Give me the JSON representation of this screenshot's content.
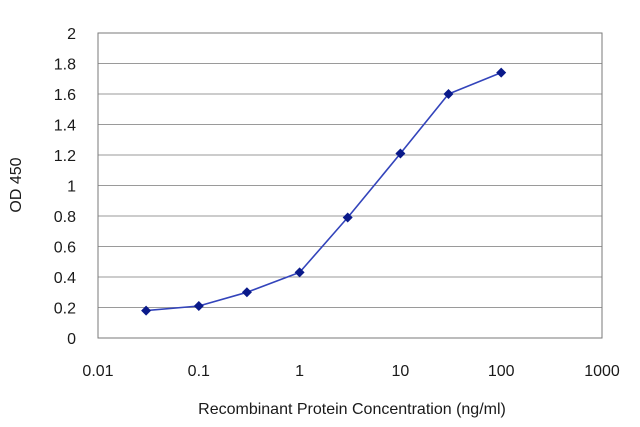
{
  "chart_data": {
    "type": "line",
    "xlabel": "Recombinant Protein Concentration (ng/ml)",
    "ylabel": "OD 450",
    "x_scale": "log",
    "xlim": [
      0.01,
      1000
    ],
    "ylim": [
      0,
      2
    ],
    "x_ticks": [
      "0.01",
      "0.1",
      "1",
      "10",
      "100",
      "1000"
    ],
    "y_ticks": [
      "0",
      "0.2",
      "0.4",
      "0.6",
      "0.8",
      "1",
      "1.2",
      "1.4",
      "1.6",
      "1.8",
      "2"
    ],
    "grid": "horizontal",
    "legend": "none",
    "series": [
      {
        "x": [
          0.03,
          0.1,
          0.3,
          1,
          3,
          10,
          30,
          100
        ],
        "y": [
          0.18,
          0.21,
          0.3,
          0.43,
          0.79,
          1.21,
          1.6,
          1.74
        ],
        "color": "#3344bb",
        "marker": "diamond",
        "marker_color": "#0a1a8a"
      }
    ],
    "plot_background": "#ffffff",
    "grid_color": "#9a9a9a"
  }
}
